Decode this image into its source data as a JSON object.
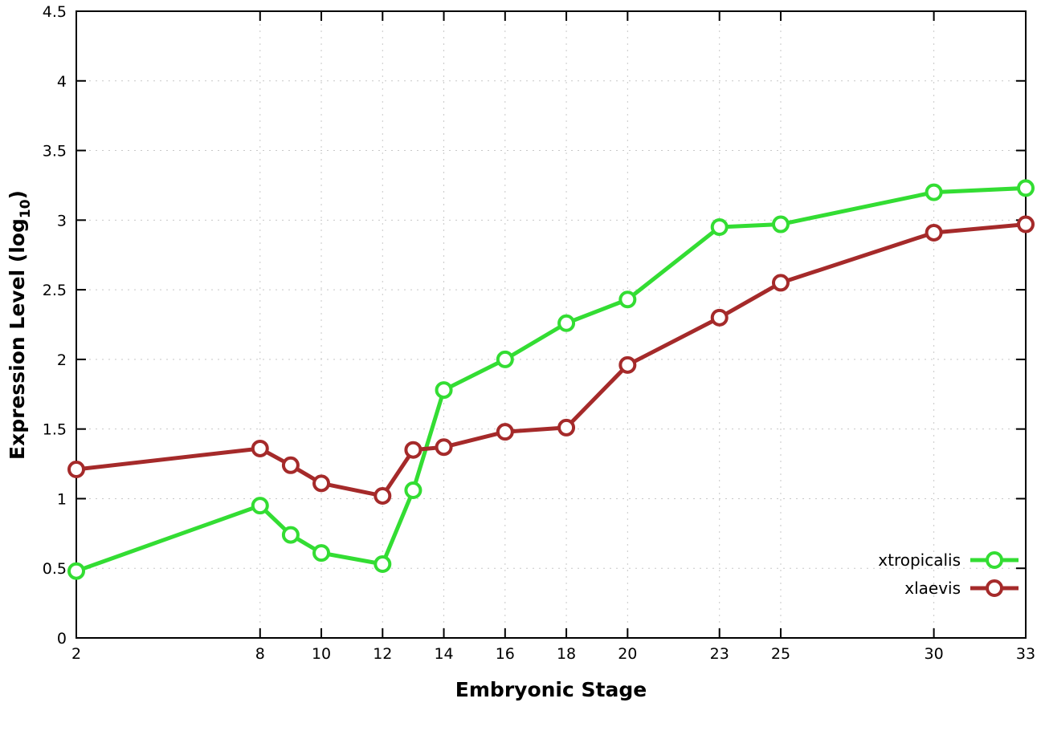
{
  "chart_data": {
    "type": "line",
    "x": [
      2,
      8,
      9,
      10,
      12,
      13,
      14,
      16,
      18,
      20,
      23,
      25,
      30,
      33
    ],
    "series": [
      {
        "name": "xtropicalis",
        "color": "#33dd33",
        "values": [
          0.48,
          0.95,
          0.74,
          0.61,
          0.53,
          1.06,
          1.78,
          2.0,
          2.26,
          2.43,
          2.95,
          2.97,
          3.2,
          3.23
        ]
      },
      {
        "name": "xlaevis",
        "color": "#a52a2a",
        "values": [
          1.21,
          1.36,
          1.24,
          1.11,
          1.02,
          1.35,
          1.37,
          1.48,
          1.51,
          1.96,
          2.3,
          2.55,
          2.91,
          2.97
        ]
      }
    ],
    "title": "",
    "xlabel": "Embryonic Stage",
    "ylabel": {
      "pre": "Expression Level (log",
      "sub": "10",
      "post": ")"
    },
    "xlim": [
      2,
      33
    ],
    "ylim": [
      0,
      4.5
    ],
    "xticks": [
      2,
      8,
      10,
      12,
      14,
      16,
      18,
      20,
      23,
      25,
      30,
      33
    ],
    "yticks": [
      0,
      0.5,
      1,
      1.5,
      2,
      2.5,
      3,
      3.5,
      4,
      4.5
    ],
    "grid": true,
    "grid_color": "#c8c8c8",
    "marker": "open-circle",
    "legend_position": "bottom-right",
    "axis_color": "#000000",
    "background_color": "#ffffff"
  }
}
